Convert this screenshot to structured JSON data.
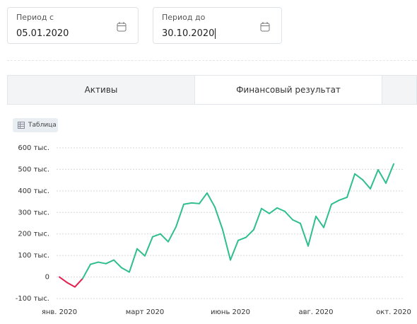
{
  "filters": [
    {
      "label": "Период с",
      "value": "05.01.2020"
    },
    {
      "label": "Период до",
      "value": "30.10.2020"
    }
  ],
  "tabs": [
    "Активы",
    "Финансовый результат"
  ],
  "button": "Таблица",
  "chart_data": {
    "type": "line",
    "x": [
      0,
      1,
      2,
      3,
      4,
      5,
      6,
      7,
      8,
      9,
      10,
      11,
      12,
      13,
      14,
      15,
      16,
      17,
      18,
      19,
      20,
      21,
      22,
      23,
      24,
      25,
      26,
      27,
      28,
      29,
      30,
      31,
      32,
      33,
      34,
      35,
      36,
      37,
      38,
      39,
      40,
      41,
      42,
      43
    ],
    "series": [
      {
        "values": [
          0,
          -26,
          -46,
          -7,
          59,
          69,
          62,
          79,
          43,
          23,
          131,
          98,
          187,
          200,
          164,
          233,
          338,
          344,
          341,
          390,
          325,
          220,
          79,
          170,
          184,
          220,
          318,
          295,
          321,
          305,
          266,
          249,
          144,
          282,
          230,
          338,
          357,
          370,
          479,
          452,
          410,
          498,
          436,
          525
        ]
      }
    ],
    "colors": {
      "positive": "#2fbf8c",
      "negative": "#e61e4d"
    },
    "xlim": [
      0,
      43
    ],
    "xticks": [
      {
        "value": 0,
        "label": "янв. 2020"
      },
      {
        "value": 11,
        "label": "март 2020"
      },
      {
        "value": 22,
        "label": "июнь 2020"
      },
      {
        "value": 33,
        "label": "авг. 2020"
      },
      {
        "value": 43,
        "label": "окт. 2020"
      }
    ],
    "ylim": [
      -100,
      600
    ],
    "yticks": [
      {
        "value": -100,
        "label": "-100 тыс."
      },
      {
        "value": 0,
        "label": "0"
      },
      {
        "value": 100,
        "label": "100 тыс."
      },
      {
        "value": 200,
        "label": "200 тыс."
      },
      {
        "value": 300,
        "label": "300 тыс."
      },
      {
        "value": 400,
        "label": "400 тыс."
      },
      {
        "value": 500,
        "label": "500 тыс."
      },
      {
        "value": 600,
        "label": "600 тыс."
      }
    ],
    "grid": true
  }
}
